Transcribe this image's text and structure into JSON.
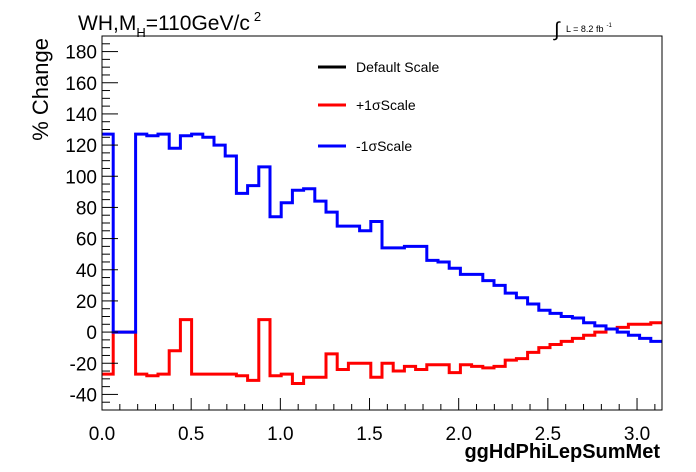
{
  "chart_data": {
    "type": "line",
    "title_text": "WH,M",
    "title_sub": "H",
    "title_rest": "=110GeV/c",
    "title_sup": "2",
    "lumi_prefix": "∫",
    "lumi_text": "L = 8.2 fb",
    "lumi_sup": "-1",
    "xlabel": "ggHdPhiLepSumMet",
    "ylabel": "% Change",
    "xlim": [
      0,
      3.14
    ],
    "ylim": [
      -50,
      190
    ],
    "xticks": [
      0,
      0.5,
      1.0,
      1.5,
      2.0,
      2.5,
      3.0
    ],
    "xtick_labels": [
      "0.0",
      "0.5",
      "1.0",
      "1.5",
      "2.0",
      "2.5",
      "3.0"
    ],
    "yticks": [
      -40,
      -20,
      0,
      20,
      40,
      60,
      80,
      100,
      120,
      140,
      160,
      180
    ],
    "ytick_labels": [
      "-40",
      "-20",
      "0",
      "20",
      "40",
      "60",
      "80",
      "100",
      "120",
      "140",
      "160",
      "180"
    ],
    "bin_width": 0.0628,
    "legend_position": "top-center",
    "grid": false,
    "series": [
      {
        "name": "Default Scale",
        "color": "#000000",
        "values": []
      },
      {
        "name": "+1σScale",
        "color": "#ff0000",
        "values": [
          -27,
          0,
          0,
          -27,
          -28,
          -27,
          -12,
          8,
          -27,
          -27,
          -27,
          -27,
          -28,
          -31,
          8,
          -28,
          -27,
          -33,
          -29,
          -29,
          -14,
          -24,
          -20,
          -20,
          -29,
          -20,
          -25,
          -22,
          -24,
          -21,
          -21,
          -26,
          -21,
          -22,
          -23,
          -22,
          -18,
          -17,
          -13,
          -10,
          -8,
          -6,
          -4,
          -2,
          0,
          2,
          3,
          5,
          5,
          6
        ]
      },
      {
        "name": "-1σScale",
        "color": "#0000ff",
        "values": [
          127,
          0,
          0,
          127,
          126,
          127,
          118,
          126,
          127,
          125,
          120,
          113,
          89,
          94,
          106,
          74,
          83,
          91,
          92,
          84,
          77,
          68,
          68,
          65,
          71,
          54,
          54,
          55,
          55,
          46,
          45,
          41,
          37,
          37,
          33,
          30,
          25,
          22,
          18,
          14,
          12,
          10,
          9,
          6,
          4,
          2,
          0,
          -2,
          -4,
          -6
        ]
      }
    ]
  }
}
